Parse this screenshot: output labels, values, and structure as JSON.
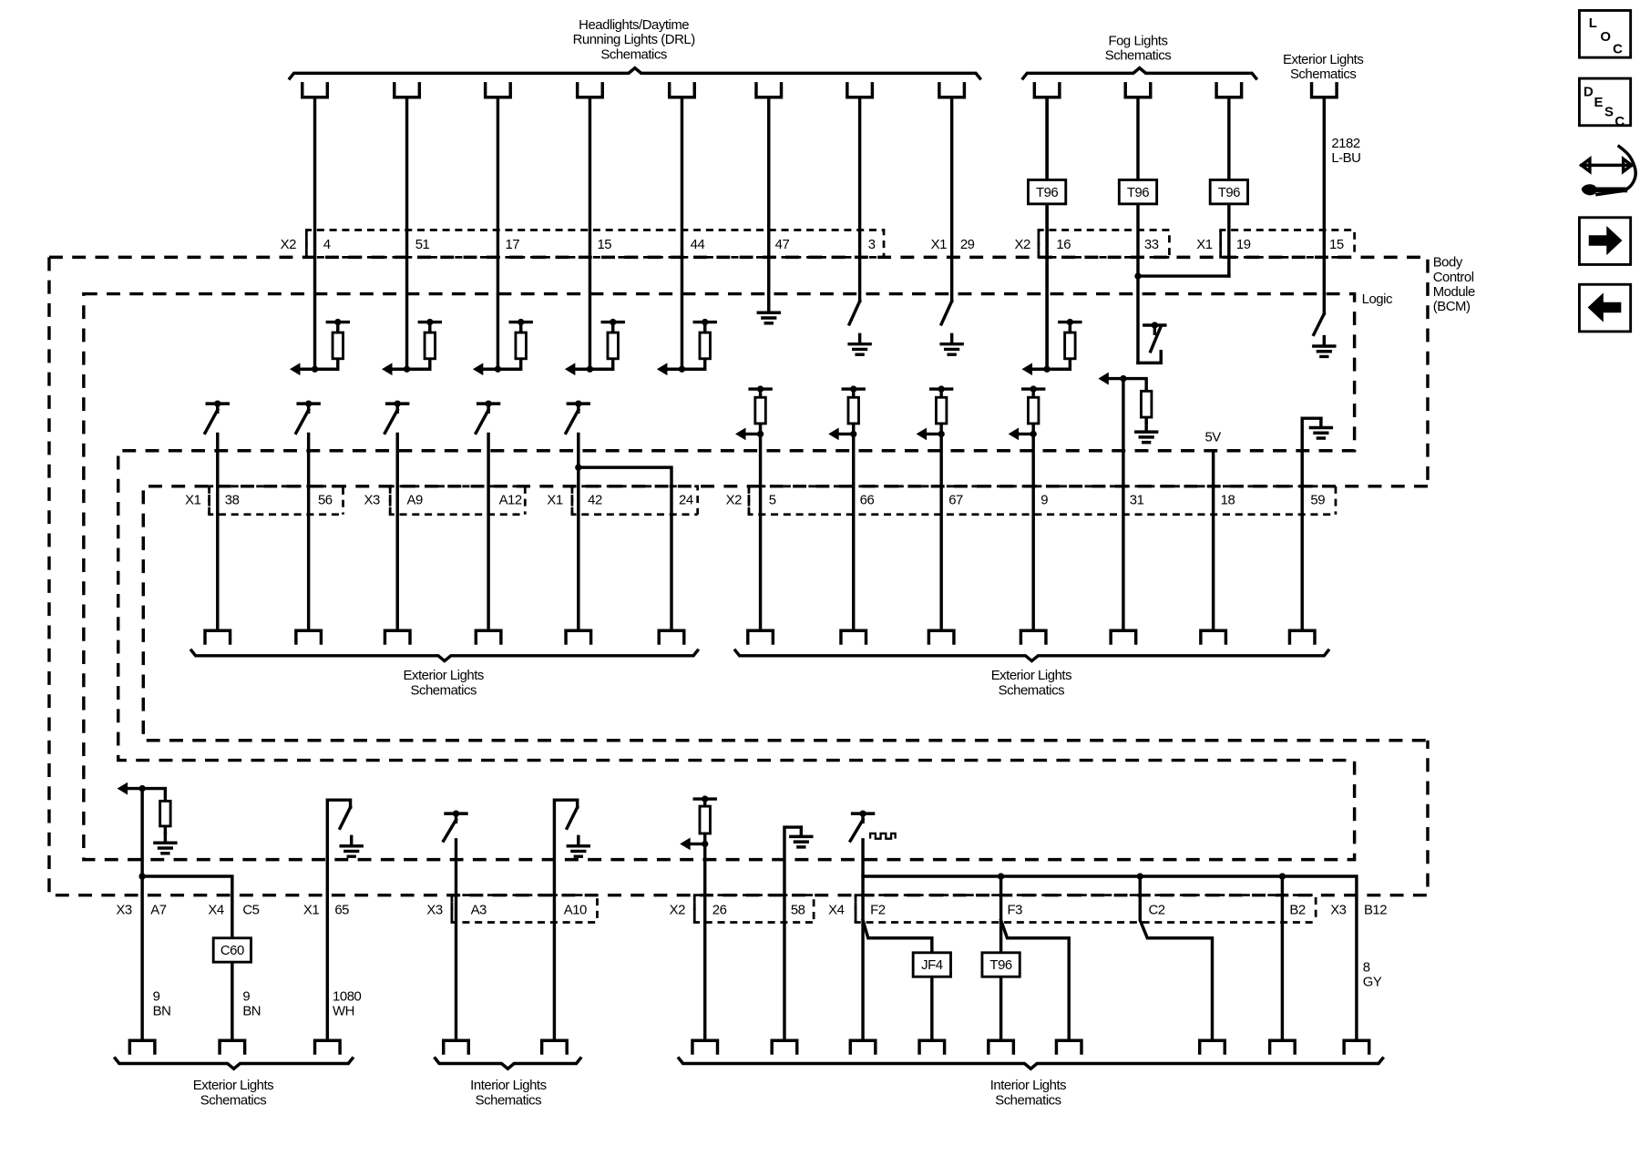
{
  "groups": {
    "headlights_drl": [
      "Headlights/Daytime",
      "Running Lights (DRL)",
      "Schematics"
    ],
    "fog_lights": [
      "Fog Lights",
      "Schematics"
    ],
    "exterior_top": [
      "Exterior Lights",
      "Schematics"
    ],
    "exterior_mid_left": [
      "Exterior Lights",
      "Schematics"
    ],
    "exterior_mid_right": [
      "Exterior Lights",
      "Schematics"
    ],
    "exterior_bottom": [
      "Exterior Lights",
      "Schematics"
    ],
    "interior_bottom_left": [
      "Interior Lights",
      "Schematics"
    ],
    "interior_bottom_right": [
      "Interior Lights",
      "Schematics"
    ]
  },
  "module": {
    "name": [
      "Body",
      "Control",
      "Module",
      "(BCM)"
    ],
    "logic_label": "Logic",
    "supply_voltage": "5V"
  },
  "pins_top": [
    "X2",
    "4",
    "51",
    "17",
    "15",
    "44",
    "47",
    "3",
    "X1",
    "29",
    "X2",
    "16",
    "33",
    "X1",
    "19",
    "15"
  ],
  "pins_mid": [
    "X1",
    "38",
    "56",
    "X3",
    "A9",
    "A12",
    "X1",
    "42",
    "24",
    "X2",
    "5",
    "66",
    "67",
    "9",
    "31",
    "18",
    "59"
  ],
  "pins_bot": [
    "X3",
    "A7",
    "X4",
    "C5",
    "X1",
    "65",
    "X3",
    "A3",
    "A10",
    "X2",
    "26",
    "58",
    "X4",
    "F2",
    "F3",
    "C2",
    "B2",
    "X3",
    "B12"
  ],
  "components": {
    "splice_t96": "T96",
    "splice_c60": "C60",
    "splice_jf4": "JF4"
  },
  "wires": [
    {
      "circuit": "2182",
      "color": "L-BU"
    },
    {
      "circuit": "9",
      "color": "BN"
    },
    {
      "circuit": "9",
      "color": "BN"
    },
    {
      "circuit": "1080",
      "color": "WH"
    },
    {
      "circuit": "8",
      "color": "GY"
    }
  ],
  "nav": {
    "loc_letters": [
      "L",
      "O",
      "C"
    ],
    "desc_letters": [
      "D",
      "E",
      "S",
      "C"
    ],
    "icons": [
      "location-icon",
      "description-icon",
      "connector-tool-icon",
      "next-arrow-icon",
      "previous-arrow-icon"
    ]
  }
}
